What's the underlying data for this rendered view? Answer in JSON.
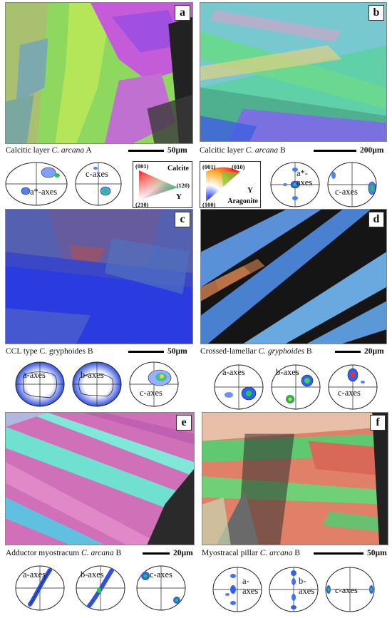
{
  "panels": {
    "a": {
      "letter": "a",
      "caption": "Calcitic layer ",
      "species": "C. arcana",
      "suffix": " A",
      "scale": "50µm"
    },
    "b": {
      "letter": "b",
      "caption": "Calcitic layer ",
      "species": "C. arcana",
      "suffix": " B",
      "scale": "200µm"
    },
    "c": {
      "letter": "c",
      "caption": "CCL type C. gryphoides B",
      "scale": "50µm"
    },
    "d": {
      "letter": "d",
      "caption": "Crossed-lamellar ",
      "species": "C. gryphoides",
      "suffix": " B",
      "scale": "20µm"
    },
    "e": {
      "letter": "e",
      "caption": "Adductor myostracum ",
      "species": "C. arcana",
      "suffix": " B",
      "scale": "20µm"
    },
    "f": {
      "letter": "f",
      "caption": "Myostracal pillar ",
      "species": "C. arcana",
      "suffix": " B",
      "scale": "50µm"
    }
  },
  "pole_figures": {
    "a": [
      "a*-axes",
      "c-axes"
    ],
    "b": [
      "a*-",
      "axes",
      "c-axes"
    ],
    "c": [
      "a-axes",
      "b-axes",
      "c-axes"
    ],
    "d": [
      "a-axes",
      "b-axes",
      "c-axes"
    ],
    "e": [
      "a-axes",
      "b-axes",
      "c-axes"
    ],
    "f": [
      "a-",
      "axes",
      "b-",
      "axes",
      "c-axes"
    ]
  },
  "keys": {
    "calcite": {
      "name": "Calcite",
      "top": "(001)",
      "right": "(120)",
      "bottom": "(210)",
      "axis": "Y"
    },
    "aragonite": {
      "name": "Aragonite",
      "top_left": "(001)",
      "top_right": "(010)",
      "bottom": "(100)",
      "axis": "Y"
    }
  },
  "colors": {
    "blue": "#3a5cf0",
    "green": "#7ed957",
    "magenta": "#c050d0",
    "salmon": "#e07a6a",
    "cyan": "#6fe0d8"
  }
}
